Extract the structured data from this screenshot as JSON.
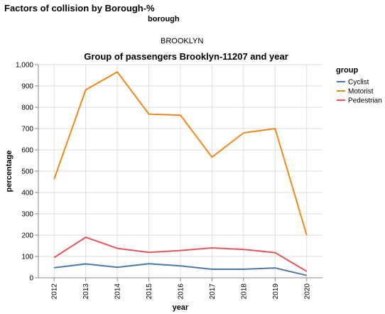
{
  "header": {
    "title": "Factors of collision by Borough-%",
    "facet_field": "borough",
    "facet_value": "BROOKLYN"
  },
  "chart_data": {
    "type": "line",
    "title": "Group of passengers Brooklyn-11207 and year",
    "xlabel": "year",
    "ylabel": "percentage",
    "categories": [
      "2012",
      "2013",
      "2014",
      "2015",
      "2016",
      "2017",
      "2018",
      "2019",
      "2020"
    ],
    "ylim": [
      0,
      1000
    ],
    "yticks": [
      "0",
      "100",
      "200",
      "300",
      "400",
      "500",
      "600",
      "700",
      "800",
      "900",
      "1,000"
    ],
    "grid": true,
    "legend": {
      "title": "group",
      "position": "right"
    },
    "series": [
      {
        "name": "Cyclist",
        "color": "#4c78a8",
        "values": [
          47,
          65,
          49,
          66,
          56,
          40,
          40,
          46,
          11
        ]
      },
      {
        "name": "Motorist",
        "color": "#f58518",
        "values": [
          463,
          882,
          966,
          768,
          763,
          566,
          680,
          700,
          200
        ]
      },
      {
        "name": "Pedestrian",
        "color": "#e45756",
        "values": [
          95,
          190,
          138,
          119,
          128,
          140,
          133,
          118,
          30
        ]
      }
    ]
  }
}
